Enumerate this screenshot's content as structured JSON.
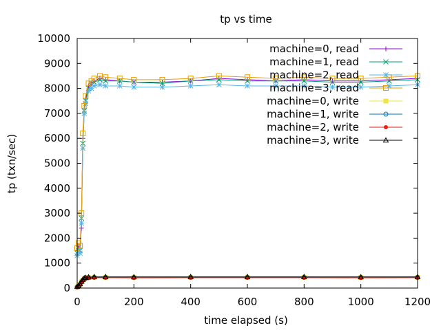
{
  "chart_data": {
    "type": "line",
    "title": "tp vs time",
    "xlabel": "time elapsed (s)",
    "ylabel": "tp (txn/sec)",
    "xlim": [
      0,
      1200
    ],
    "ylim": [
      0,
      10000
    ],
    "xticks": [
      0,
      200,
      400,
      600,
      800,
      1000,
      1200
    ],
    "yticks": [
      0,
      1000,
      2000,
      3000,
      4000,
      5000,
      6000,
      7000,
      8000,
      9000,
      10000
    ],
    "grid": false,
    "legend_position": "top-right",
    "series": [
      {
        "name": "machine=0, read",
        "color": "#9400d3",
        "marker": "plus",
        "x": [
          0,
          5,
          10,
          15,
          20,
          25,
          30,
          40,
          50,
          60,
          80,
          100,
          150,
          200,
          300,
          400,
          500,
          600,
          700,
          800,
          900,
          1000,
          1100,
          1200
        ],
        "y": [
          1500,
          1700,
          1600,
          2400,
          6000,
          7200,
          7600,
          8100,
          8200,
          8300,
          8400,
          8350,
          8300,
          8250,
          8250,
          8300,
          8400,
          8350,
          8300,
          8350,
          8300,
          8300,
          8350,
          8400
        ]
      },
      {
        "name": "machine=1, read",
        "color": "#009e73",
        "marker": "cross",
        "x": [
          0,
          5,
          10,
          15,
          20,
          25,
          30,
          40,
          50,
          60,
          80,
          100,
          150,
          200,
          300,
          400,
          500,
          600,
          700,
          800,
          900,
          1000,
          1100,
          1200
        ],
        "y": [
          1400,
          1600,
          1500,
          2800,
          5800,
          7100,
          7500,
          8000,
          8200,
          8250,
          8350,
          8300,
          8300,
          8250,
          8200,
          8300,
          8350,
          8300,
          8300,
          8300,
          8250,
          8250,
          8300,
          8350
        ]
      },
      {
        "name": "machine=2, read",
        "color": "#56b4e9",
        "marker": "star",
        "x": [
          0,
          5,
          10,
          15,
          20,
          25,
          30,
          40,
          50,
          60,
          80,
          100,
          150,
          200,
          300,
          400,
          500,
          600,
          700,
          800,
          900,
          1000,
          1100,
          1200
        ],
        "y": [
          1300,
          1500,
          1400,
          2600,
          5600,
          7000,
          7400,
          7900,
          8000,
          8100,
          8150,
          8100,
          8100,
          8050,
          8050,
          8100,
          8150,
          8100,
          8100,
          8100,
          8050,
          8050,
          8100,
          8150
        ]
      },
      {
        "name": "machine=3, read",
        "color": "#e69f00",
        "marker": "box",
        "x": [
          0,
          5,
          10,
          15,
          20,
          25,
          30,
          40,
          50,
          60,
          80,
          100,
          150,
          200,
          300,
          400,
          500,
          600,
          700,
          800,
          900,
          1000,
          1100,
          1200
        ],
        "y": [
          1600,
          1800,
          1700,
          3000,
          6200,
          7300,
          7700,
          8200,
          8300,
          8400,
          8500,
          8450,
          8400,
          8350,
          8350,
          8400,
          8500,
          8450,
          8400,
          8450,
          8400,
          8400,
          8450,
          8500
        ]
      },
      {
        "name": "machine=0, write",
        "color": "#f0e442",
        "marker": "filledbox",
        "x": [
          0,
          5,
          10,
          15,
          20,
          25,
          30,
          40,
          60,
          100,
          200,
          400,
          600,
          800,
          1000,
          1200
        ],
        "y": [
          50,
          80,
          150,
          250,
          320,
          380,
          400,
          420,
          430,
          430,
          425,
          430,
          430,
          430,
          425,
          430
        ]
      },
      {
        "name": "machine=1, write",
        "color": "#0072b2",
        "marker": "circle",
        "x": [
          0,
          5,
          10,
          15,
          20,
          25,
          30,
          40,
          60,
          100,
          200,
          400,
          600,
          800,
          1000,
          1200
        ],
        "y": [
          40,
          70,
          140,
          240,
          310,
          370,
          395,
          415,
          425,
          425,
          420,
          425,
          425,
          425,
          420,
          425
        ]
      },
      {
        "name": "machine=2, write",
        "color": "#e51e10",
        "marker": "filledcircle",
        "x": [
          0,
          5,
          10,
          15,
          20,
          25,
          30,
          40,
          60,
          100,
          200,
          400,
          600,
          800,
          1000,
          1200
        ],
        "y": [
          30,
          60,
          130,
          230,
          300,
          360,
          385,
          405,
          415,
          415,
          410,
          415,
          415,
          415,
          410,
          415
        ]
      },
      {
        "name": "machine=3, write",
        "color": "#000000",
        "marker": "triangle",
        "x": [
          0,
          5,
          10,
          15,
          20,
          25,
          30,
          40,
          60,
          100,
          200,
          400,
          600,
          800,
          1000,
          1200
        ],
        "y": [
          60,
          100,
          170,
          270,
          340,
          400,
          420,
          440,
          450,
          450,
          445,
          450,
          450,
          450,
          445,
          450
        ]
      }
    ]
  }
}
